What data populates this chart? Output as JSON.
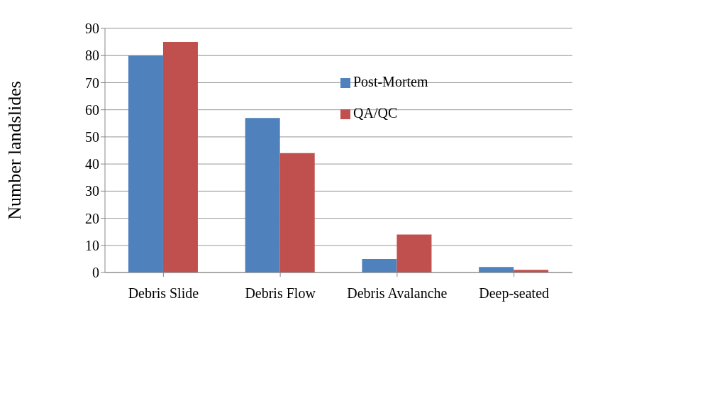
{
  "chart_data": {
    "type": "bar",
    "ylabel": "Number landslides",
    "categories": [
      "Debris Slide",
      "Debris Flow",
      "Debris Avalanche",
      "Deep-seated"
    ],
    "series": [
      {
        "name": "Post-Mortem",
        "color": "#4f81bd",
        "values": [
          80,
          57,
          5,
          2
        ]
      },
      {
        "name": "QA/QC",
        "color": "#c0504d",
        "values": [
          85,
          44,
          14,
          1
        ]
      }
    ],
    "ylim": [
      0,
      90
    ],
    "yticks": [
      0,
      10,
      20,
      30,
      40,
      50,
      60,
      70,
      80,
      90
    ],
    "grid": "y",
    "legend": "top right"
  }
}
